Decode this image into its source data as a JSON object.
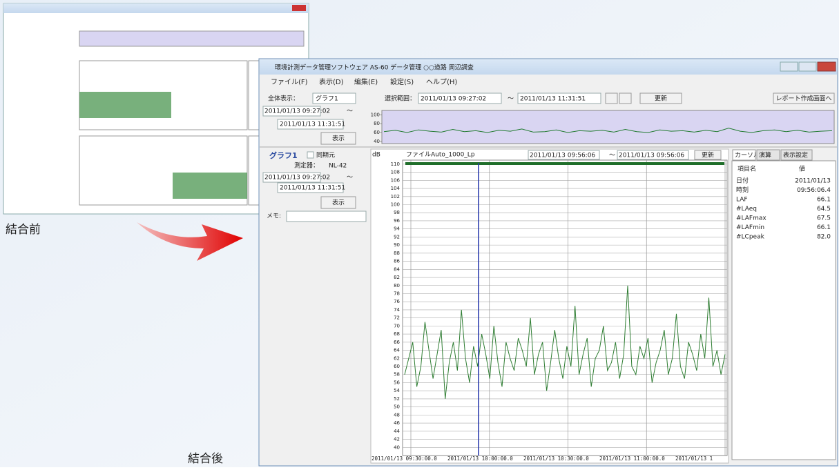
{
  "labels": {
    "before": "結合前",
    "after": "結合後"
  },
  "window": {
    "title": "環境計測データ管理ソフトウェア AS-60 データ管理 ○○道路 周辺調査",
    "menu": [
      "ファイル(F)",
      "表示(D)",
      "編集(E)",
      "設定(S)",
      "ヘルプ(H)"
    ],
    "toolbar": {
      "overall_label": "全体表示：",
      "overall_value": "グラフ1",
      "range_label": "選択範囲：",
      "range_start": "2011/01/13 09:27:02",
      "tilde": "〜",
      "range_end": "2011/01/13 11:31:51",
      "update": "更新",
      "report": "レポート作成画面へ"
    },
    "left_panel": {
      "start": "2011/01/13 09:27:02",
      "tilde": "〜",
      "end": "2011/01/13 11:31:51",
      "show": "表示"
    },
    "graph_panel": {
      "name": "グラフ1",
      "sync": "同期元",
      "device_label": "測定器：",
      "device": "NL-42",
      "start": "2011/01/13 09:27:02",
      "tilde": "〜",
      "end": "2011/01/13 11:31:51",
      "show": "表示",
      "memo": "メモ:"
    },
    "graph_header": {
      "cursor_start": "2011/01/13 09:56:06",
      "tilde": "〜",
      "cursor_end": "2011/01/13 09:56:06",
      "update": "更新"
    },
    "side_panel": {
      "tabs": [
        "カーソル",
        "演算",
        "表示設定"
      ],
      "header": [
        "項目名",
        "値"
      ],
      "rows": [
        [
          "日付",
          "2011/01/13"
        ],
        [
          "時刻",
          "09:56:06.4"
        ],
        [
          "LAF",
          "66.1"
        ],
        [
          "#LAeq",
          "64.5"
        ],
        [
          "#LAFmax",
          "67.5"
        ],
        [
          "#LAFmin",
          "66.1"
        ],
        [
          "#LCpeak",
          "82.0"
        ]
      ]
    }
  },
  "chart_data": [
    {
      "type": "line",
      "ylim": [
        35,
        110
      ],
      "yticks": [
        100,
        80,
        60,
        40
      ],
      "fill": "#d9d5f2",
      "series": [
        {
          "color": "#1f7a2e",
          "values": [
            62,
            65,
            60,
            66,
            63,
            61,
            67,
            62,
            64,
            60,
            65,
            63,
            68,
            61,
            62,
            66,
            60,
            64,
            63,
            65,
            61,
            67,
            62,
            60,
            66,
            63,
            64,
            61,
            65,
            62,
            70,
            63,
            60,
            64,
            66,
            62,
            65,
            61,
            63,
            64
          ]
        }
      ]
    },
    {
      "type": "line",
      "y_label": "dB",
      "title": "ファイルAuto_1000_Lp",
      "ylim": [
        38,
        111
      ],
      "grid": true,
      "yticks": [
        110,
        108,
        106,
        104,
        102,
        100,
        98,
        96,
        94,
        92,
        90,
        88,
        86,
        84,
        82,
        80,
        78,
        76,
        74,
        72,
        70,
        68,
        66,
        64,
        62,
        60,
        58,
        56,
        54,
        52,
        50,
        48,
        46,
        44,
        42,
        40
      ],
      "x_tick_labels": [
        "2011/01/13 09:30:00.0",
        "2011/01/13 10:00:00.0",
        "2011/01/13 10:30:00.0",
        "2011/01/13 11:00:00.0",
        "2011/01/13 1"
      ],
      "series": [
        {
          "color": "#2e7d32",
          "values": [
            58,
            62,
            66,
            55,
            60,
            71,
            64,
            57,
            63,
            69,
            52,
            61,
            66,
            59,
            74,
            62,
            56,
            65,
            60,
            68,
            63,
            57,
            70,
            61,
            55,
            66,
            62,
            59,
            67,
            64,
            60,
            72,
            58,
            63,
            66,
            54,
            61,
            69,
            62,
            57,
            65,
            60,
            75,
            58,
            63,
            67,
            55,
            62,
            64,
            70,
            59,
            61,
            66,
            57,
            63,
            80,
            60,
            58,
            65,
            62,
            67,
            56,
            61,
            64,
            69,
            58,
            62,
            73,
            60,
            57,
            66,
            63,
            59,
            68,
            62,
            77,
            60,
            64,
            58,
            63
          ]
        }
      ]
    }
  ]
}
